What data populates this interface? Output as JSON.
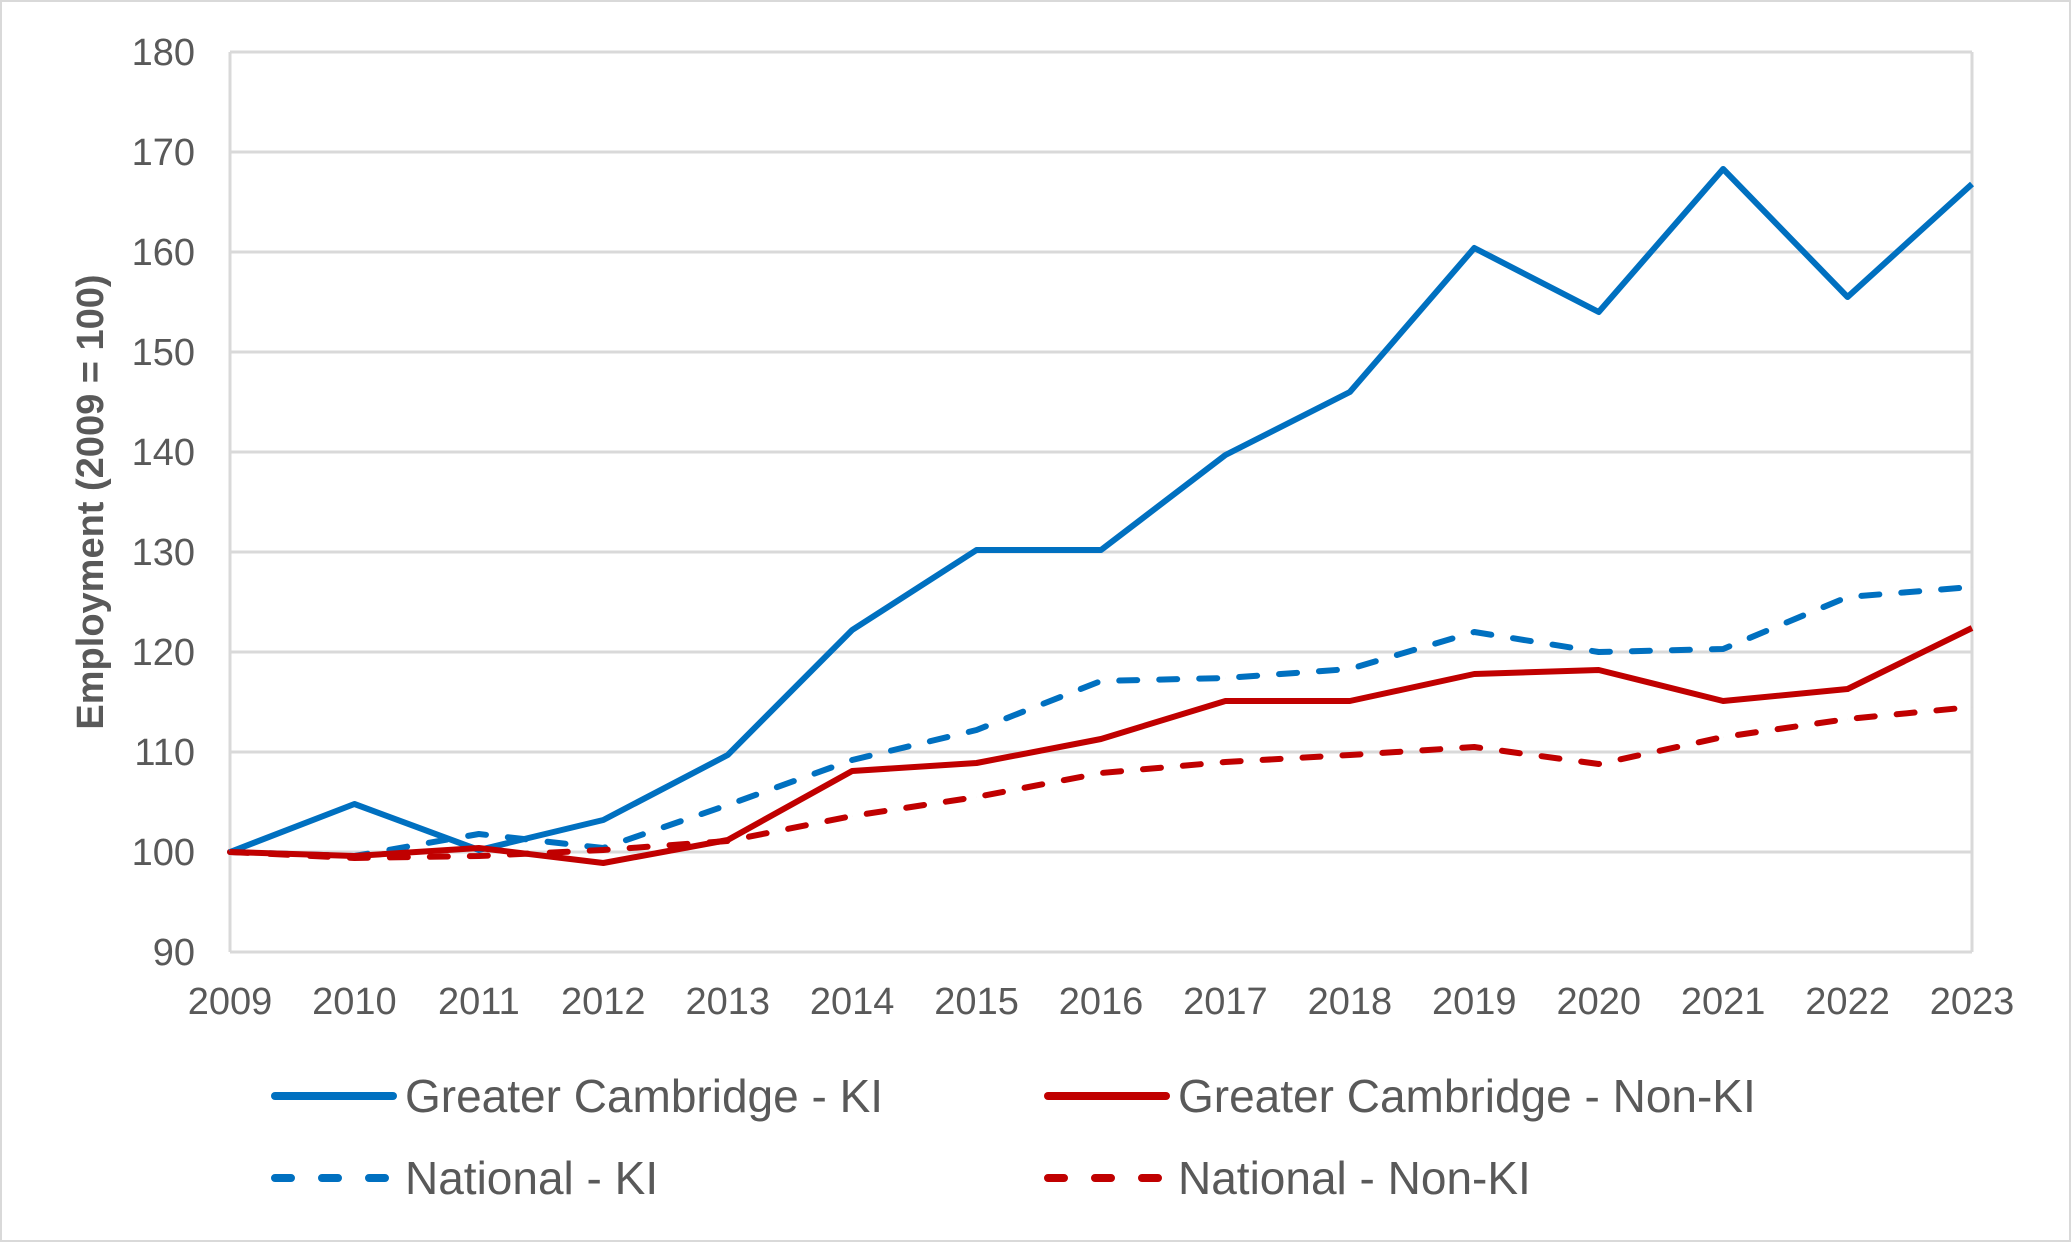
{
  "chart_data": {
    "type": "line",
    "title": "",
    "xlabel": "",
    "ylabel": "Employment (2009 = 100)",
    "ylim": [
      90,
      180
    ],
    "yticks": [
      90,
      100,
      110,
      120,
      130,
      140,
      150,
      160,
      170,
      180
    ],
    "x": [
      "2009",
      "2010",
      "2011",
      "2012",
      "2013",
      "2014",
      "2015",
      "2016",
      "2017",
      "2018",
      "2019",
      "2020",
      "2021",
      "2022",
      "2023"
    ],
    "grid": "horizontal",
    "legend_position": "bottom",
    "series": [
      {
        "name": "Greater Cambridge - KI",
        "color": "#0070C0",
        "style": "solid",
        "values": [
          100.0,
          104.8,
          100.2,
          103.2,
          109.7,
          122.2,
          130.2,
          130.2,
          139.7,
          146.0,
          160.4,
          154.0,
          168.3,
          155.5,
          166.8
        ]
      },
      {
        "name": "Greater Cambridge - Non-KI",
        "color": "#C00000",
        "style": "solid",
        "values": [
          100.0,
          99.6,
          100.4,
          98.9,
          101.2,
          108.1,
          108.9,
          111.3,
          115.1,
          115.1,
          117.8,
          118.2,
          115.1,
          116.3,
          122.4
        ]
      },
      {
        "name": "National - KI",
        "color": "#0070C0",
        "style": "dashed",
        "values": [
          100.0,
          99.6,
          101.8,
          100.4,
          104.7,
          109.2,
          112.2,
          117.1,
          117.4,
          118.3,
          122.0,
          120.0,
          120.3,
          125.5,
          126.5
        ]
      },
      {
        "name": "National - Non-KI",
        "color": "#C00000",
        "style": "dashed",
        "values": [
          100.0,
          99.4,
          99.6,
          100.2,
          101.1,
          103.6,
          105.5,
          107.9,
          109.0,
          109.7,
          110.5,
          108.8,
          111.5,
          113.3,
          114.5
        ]
      }
    ]
  },
  "colors": {
    "gridline": "#d9d9d9",
    "text": "#595959"
  }
}
